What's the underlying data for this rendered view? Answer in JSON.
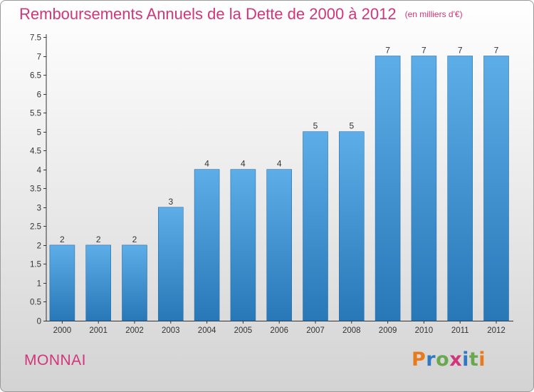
{
  "header": {
    "title": "Remboursements Annuels de la Dette de 2000 à 2012",
    "unit": "(en milliers d'€)"
  },
  "footer": {
    "commune": "MONNAI",
    "brand": "Proxiti",
    "brand_colors": [
      "#e87a1e",
      "#2f79c2",
      "#6aa84f",
      "#d1367a",
      "#2f79c2",
      "#6aa84f",
      "#e87a1e"
    ]
  },
  "colors": {
    "accent": "#d1367a",
    "bar_top": "#5dade8",
    "bar_bottom": "#2878b8",
    "axis": "#333333"
  },
  "chart_data": {
    "type": "bar",
    "categories": [
      "2000",
      "2001",
      "2002",
      "2003",
      "2004",
      "2005",
      "2006",
      "2007",
      "2008",
      "2009",
      "2010",
      "2011",
      "2012"
    ],
    "values": [
      2,
      2,
      2,
      3,
      4,
      4,
      4,
      5,
      5,
      7,
      7,
      7,
      7
    ],
    "y_ticks": [
      "0",
      "0.5",
      "1",
      "1.5",
      "2",
      "2.5",
      "3",
      "3.5",
      "4",
      "4.5",
      "5",
      "5.5",
      "6",
      "6.5",
      "7",
      "7.5"
    ],
    "ylim": [
      0,
      7.5
    ],
    "grid": false,
    "legend": "none"
  }
}
